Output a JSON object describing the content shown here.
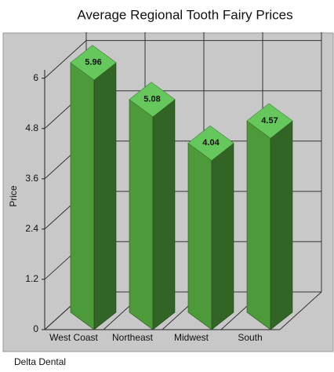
{
  "chart_data": {
    "type": "bar3d",
    "title": "Average Regional Tooth Fairy Prices",
    "y_label": "Price",
    "source": "Delta Dental",
    "categories": [
      "West Coast",
      "Northeast",
      "Midwest",
      "South"
    ],
    "values": [
      5.96,
      5.08,
      4.04,
      4.57
    ],
    "color": "#4c9a3a",
    "ylim": [
      0,
      6.2
    ],
    "yticks": [
      0,
      1.2,
      2.4,
      3.6,
      4.8,
      6
    ],
    "grid": true
  }
}
